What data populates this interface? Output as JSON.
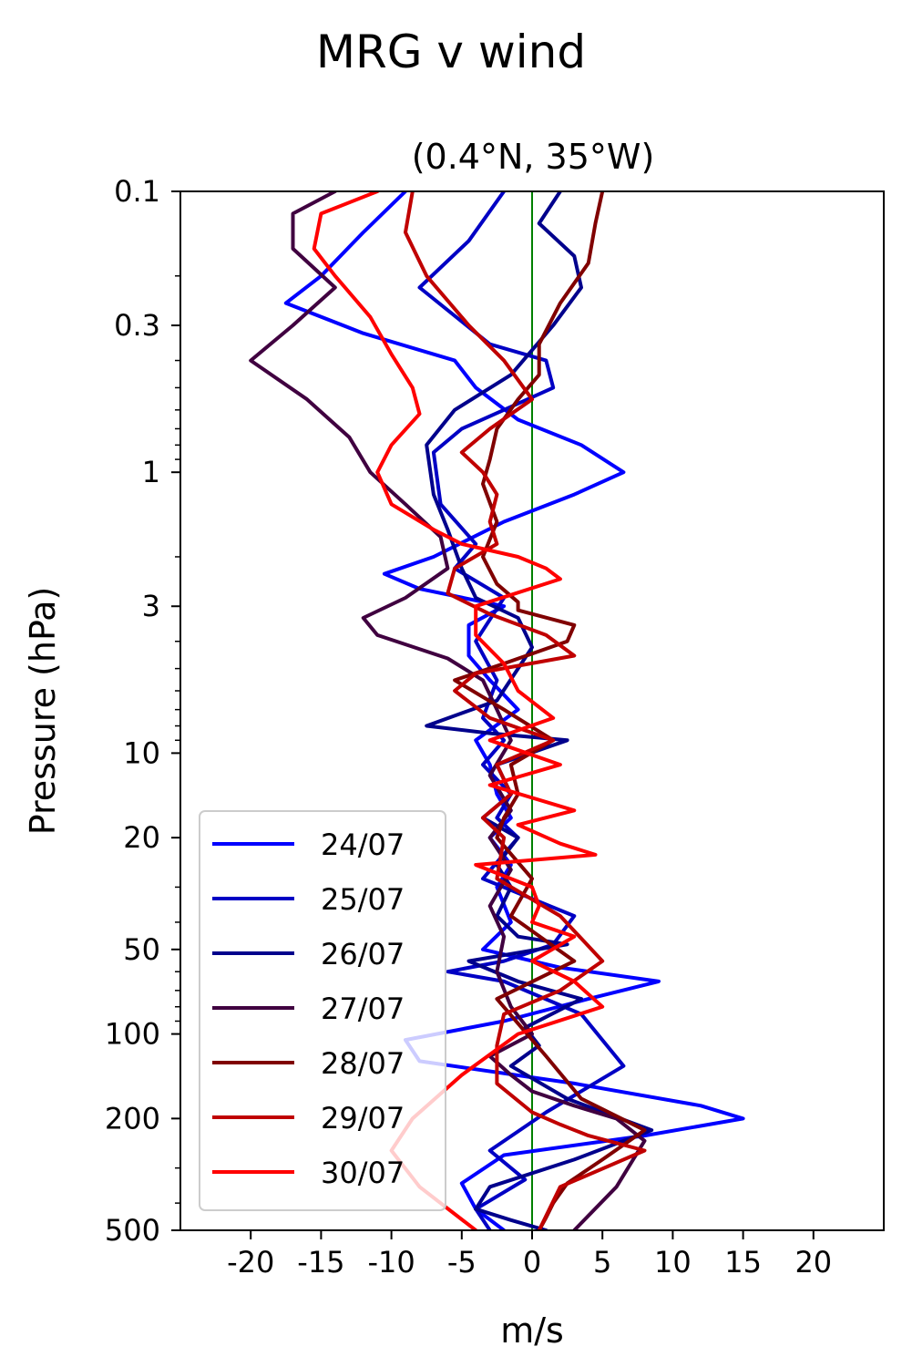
{
  "figure_title": "MRG v wind",
  "chart_data": {
    "type": "line",
    "title": "(0.4°N, 35°W)",
    "xlabel": "m/s",
    "ylabel": "Pressure (hPa)",
    "xlim": [
      -25,
      25
    ],
    "ylim": [
      500,
      0.1
    ],
    "y_scale": "log",
    "x_ticks": [
      -20,
      -15,
      -10,
      -5,
      0,
      5,
      10,
      15,
      20
    ],
    "x_tick_labels": [
      "-20",
      "-15",
      "-10",
      "-5",
      "0",
      "5",
      "10",
      "15",
      "20"
    ],
    "y_ticks": [
      0.1,
      0.3,
      1,
      3,
      10,
      20,
      50,
      100,
      200,
      500
    ],
    "y_tick_labels": [
      "0.1",
      "0.3",
      "1",
      "3",
      "10",
      "20",
      "50",
      "100",
      "200",
      "500"
    ],
    "zero_line_color": "#008000",
    "legend_position": "lower-left",
    "series": [
      {
        "name": "24/07",
        "color": "#0000ff",
        "x": [
          -9,
          -12,
          -15,
          -17.5,
          -12,
          -5.5,
          -4,
          -1,
          3.5,
          6.5,
          3,
          -2,
          -7,
          -10.5,
          -8,
          -2,
          -4.5,
          -4.5,
          -3,
          -1,
          -4,
          -3,
          -2.5,
          -1.5,
          -3,
          -1.5,
          -2.5,
          -1.5,
          -3.5,
          2,
          9,
          4,
          -2,
          -9,
          -8,
          3,
          12,
          15,
          8,
          -2,
          -5,
          -4,
          -2
        ],
        "y": [
          0.1,
          0.14,
          0.2,
          0.25,
          0.32,
          0.4,
          0.5,
          0.65,
          0.8,
          1.0,
          1.2,
          1.5,
          2.0,
          2.3,
          2.6,
          3.0,
          3.5,
          4.5,
          5.5,
          7,
          9,
          11,
          14,
          17,
          20,
          25,
          30,
          40,
          50,
          58,
          65,
          75,
          90,
          105,
          125,
          150,
          180,
          200,
          230,
          270,
          340,
          420,
          500
        ]
      },
      {
        "name": "25/07",
        "color": "#0000c4",
        "x": [
          -2,
          -4.5,
          -8,
          -3,
          1,
          1.5,
          -2,
          -5,
          -7,
          -6.5,
          -4,
          -5.5,
          -2,
          -4,
          -2.5,
          -3.5,
          -2,
          -3.5,
          -1.5,
          -2.5,
          -1,
          -3.5,
          3,
          1.5,
          -2,
          -6,
          -2,
          3.5,
          6.5,
          1,
          -3,
          -0.5,
          -4,
          -3
        ],
        "y": [
          0.1,
          0.15,
          0.22,
          0.35,
          0.4,
          0.5,
          0.6,
          0.7,
          0.85,
          1.3,
          1.8,
          2.2,
          2.8,
          4,
          5.5,
          7.5,
          9,
          11,
          14,
          17,
          20,
          28,
          38,
          48,
          55,
          60,
          65,
          85,
          130,
          190,
          260,
          330,
          420,
          500
        ]
      },
      {
        "name": "26/07",
        "color": "#00008c",
        "x": [
          2,
          0.5,
          3,
          3.5,
          1.5,
          -1.5,
          -5.5,
          -7.5,
          -7,
          -6,
          -5,
          -4,
          -1,
          0,
          -1,
          -2.5,
          -7.5,
          -3,
          2.5,
          -2.5,
          -1.5,
          -3.5,
          -1,
          -2.5,
          -1.5,
          -2.5,
          -1,
          2.5,
          -4.5,
          -1,
          3.5,
          -0.5,
          0.5,
          -1.5,
          2.5,
          8.5,
          3,
          -3,
          -4,
          -1.5,
          1
        ],
        "y": [
          0.1,
          0.13,
          0.17,
          0.22,
          0.3,
          0.45,
          0.6,
          0.8,
          1.2,
          1.6,
          2.2,
          2.8,
          3.3,
          4.2,
          5,
          6.5,
          8,
          8.5,
          9,
          11,
          14,
          17,
          20,
          25,
          30,
          38,
          45,
          48,
          55,
          65,
          75,
          95,
          110,
          130,
          170,
          220,
          280,
          350,
          420,
          460,
          500
        ]
      },
      {
        "name": "27/07",
        "color": "#400040",
        "x": [
          -14,
          -17,
          -17,
          -14,
          -17,
          -20,
          -16,
          -13,
          -11.5,
          -9,
          -6.5,
          -6,
          -9,
          -12,
          -11,
          -6,
          -3.5,
          -2.5,
          -1.5,
          -3,
          -1.5,
          -3,
          -1.5,
          -3,
          -2,
          -2.5,
          -1.5,
          0,
          -3,
          -1.5,
          0,
          3,
          6,
          8,
          6,
          3
        ],
        "y": [
          0.1,
          0.12,
          0.16,
          0.22,
          0.3,
          0.4,
          0.55,
          0.75,
          1.0,
          1.3,
          1.7,
          2.2,
          2.8,
          3.3,
          3.8,
          4.6,
          5.5,
          7,
          9,
          12,
          16,
          20,
          26,
          35,
          45,
          60,
          80,
          100,
          120,
          140,
          160,
          180,
          200,
          240,
          350,
          500
        ]
      },
      {
        "name": "28/07",
        "color": "#800000",
        "x": [
          5,
          4.5,
          4,
          2,
          0.5,
          0.5,
          -1,
          -2.5,
          -3,
          -3.5,
          -2.5,
          -3.5,
          -2.5,
          -1,
          -1,
          3,
          2.5,
          -2,
          -5.5,
          -2,
          1.5,
          -1.5,
          -1,
          -2,
          -2.5,
          0,
          -1.5,
          3,
          -2.5,
          1,
          3.5,
          8,
          5,
          2.5,
          1.5,
          1,
          0.5
        ],
        "y": [
          0.1,
          0.13,
          0.18,
          0.25,
          0.35,
          0.45,
          0.55,
          0.7,
          0.9,
          1.1,
          1.5,
          2.0,
          2.5,
          2.9,
          3.1,
          3.5,
          4.0,
          4.8,
          5.5,
          7,
          9,
          11,
          14,
          17,
          20,
          28,
          38,
          55,
          75,
          120,
          170,
          220,
          280,
          340,
          400,
          450,
          500
        ]
      },
      {
        "name": "29/07",
        "color": "#c00000",
        "x": [
          -8.5,
          -9,
          -7.5,
          -4.5,
          -2,
          0,
          -3,
          -5,
          -3.5,
          -2.5,
          -3,
          -2.5,
          -5.5,
          -6,
          -3,
          1,
          3,
          -4,
          -5.5,
          -3,
          1.5,
          -2.5,
          -1.5,
          -3.5,
          -2,
          -2.5,
          2,
          5,
          2,
          -2,
          -2.5,
          -2.5,
          0,
          2,
          4,
          8,
          2,
          0.5
        ],
        "y": [
          0.1,
          0.14,
          0.2,
          0.3,
          0.4,
          0.55,
          0.7,
          0.85,
          1.0,
          1.2,
          1.5,
          1.8,
          2.2,
          2.7,
          3.2,
          3.8,
          4.5,
          5.2,
          6,
          7.5,
          9,
          11,
          14,
          17,
          20,
          28,
          38,
          55,
          70,
          85,
          110,
          150,
          190,
          210,
          230,
          260,
          350,
          500
        ]
      },
      {
        "name": "30/07",
        "color": "#ff0000",
        "x": [
          -11,
          -15,
          -15.5,
          -14,
          -11.5,
          -10,
          -8.5,
          -8,
          -10,
          -11,
          -10,
          -7,
          -5,
          -1,
          1,
          2,
          -4,
          -4,
          -2,
          -1,
          1.5,
          -3,
          2,
          -3,
          3,
          -1,
          2,
          4.5,
          -4,
          0,
          0.5,
          0,
          3,
          0,
          3,
          5,
          -1,
          -5,
          -8.5,
          -10,
          -8,
          -4
        ],
        "y": [
          0.1,
          0.12,
          0.16,
          0.2,
          0.28,
          0.38,
          0.5,
          0.62,
          0.8,
          1.0,
          1.3,
          1.6,
          1.8,
          2.0,
          2.2,
          2.4,
          3.0,
          3.8,
          4.8,
          6,
          7.5,
          9,
          11,
          13,
          16,
          18,
          21,
          23,
          25,
          30,
          35,
          40,
          45,
          55,
          65,
          80,
          100,
          140,
          200,
          260,
          350,
          500
        ]
      }
    ]
  }
}
